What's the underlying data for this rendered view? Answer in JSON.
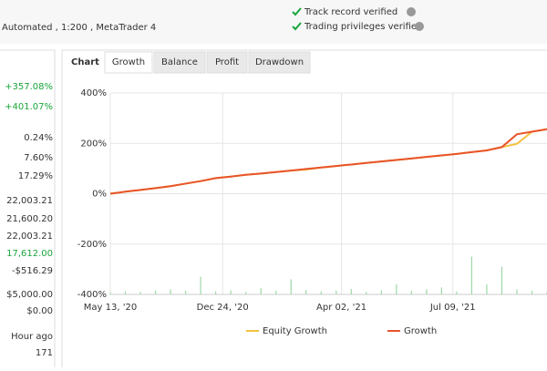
{
  "header": {
    "account_info": "Automated , 1:200 , MetaTrader 4",
    "verifications": [
      "Track record verified",
      "Trading privileges verified"
    ]
  },
  "stats": [
    {
      "value": "+357.08%",
      "color": "#1aa53a"
    },
    {
      "value": "+401.07%",
      "color": "#1aa53a"
    },
    {
      "value": "0.24%",
      "color": "#333333"
    },
    {
      "value": "7.60%",
      "color": "#333333"
    },
    {
      "value": "17.29%",
      "color": "#333333"
    },
    {
      "value": "22,003.21",
      "color": "#333333"
    },
    {
      "value": "21,600.20",
      "color": "#333333"
    },
    {
      "value": "22,003.21",
      "color": "#333333"
    },
    {
      "value": "17,612.00",
      "color": "#1aa53a"
    },
    {
      "value": "-$516.29",
      "color": "#333333"
    },
    {
      "value": "$5,000.00",
      "color": "#333333"
    },
    {
      "value": "$0.00",
      "color": "#333333"
    },
    {
      "value": "Hour ago",
      "color": "#333333"
    },
    {
      "value": "171",
      "color": "#333333"
    }
  ],
  "tabs": {
    "label": "Chart",
    "items": [
      "Growth",
      "Balance",
      "Profit",
      "Drawdown"
    ],
    "active": 0
  },
  "chart_data": {
    "type": "line",
    "grid": true,
    "x": [
      0,
      1,
      2,
      3,
      4,
      5,
      6,
      7,
      8,
      9,
      10,
      11,
      12,
      13,
      14,
      15,
      16,
      17,
      18,
      19,
      20,
      21,
      22,
      23,
      24,
      25,
      26,
      27,
      28,
      29
    ],
    "xlim": [
      0,
      29
    ],
    "xticks": [
      {
        "value": 0,
        "label": "May 13, '20"
      },
      {
        "value": 7.46,
        "label": "Dec 24, '20"
      },
      {
        "value": 15.35,
        "label": "Apr 02, '21"
      },
      {
        "value": 22.75,
        "label": "Jul 09, '21"
      }
    ],
    "ylim": [
      -400,
      400
    ],
    "yticks": [
      {
        "value": 400,
        "label": "400%"
      },
      {
        "value": 200,
        "label": "200%"
      },
      {
        "value": 0,
        "label": "0%"
      },
      {
        "value": -200,
        "label": "-200%"
      },
      {
        "value": -400,
        "label": "-400%"
      }
    ],
    "series": [
      {
        "name": "Equity Growth",
        "color": "#f5c242",
        "values": [
          0,
          8,
          15,
          22,
          30,
          40,
          50,
          62,
          68,
          75,
          80,
          86,
          92,
          96,
          104,
          110,
          116,
          122,
          128,
          134,
          140,
          146,
          152,
          158,
          165,
          172,
          185,
          198,
          246,
          256
        ]
      },
      {
        "name": "Growth",
        "color": "#e8542a",
        "values": [
          0,
          8,
          15,
          22,
          30,
          40,
          50,
          62,
          68,
          75,
          80,
          86,
          92,
          98,
          104,
          110,
          116,
          122,
          128,
          134,
          140,
          146,
          152,
          158,
          165,
          172,
          185,
          236,
          246,
          256
        ]
      },
      {
        "type": "bar",
        "color": "#9ed8a8",
        "values": [
          -392,
          -388,
          -390,
          -385,
          -380,
          -386,
          -330,
          -388,
          -384,
          -390,
          -375,
          -386,
          -340,
          -382,
          -388,
          -385,
          -378,
          -390,
          -384,
          -360,
          -386,
          -380,
          -372,
          -388,
          -250,
          -360,
          -290,
          -380,
          -386,
          -390
        ]
      }
    ]
  }
}
